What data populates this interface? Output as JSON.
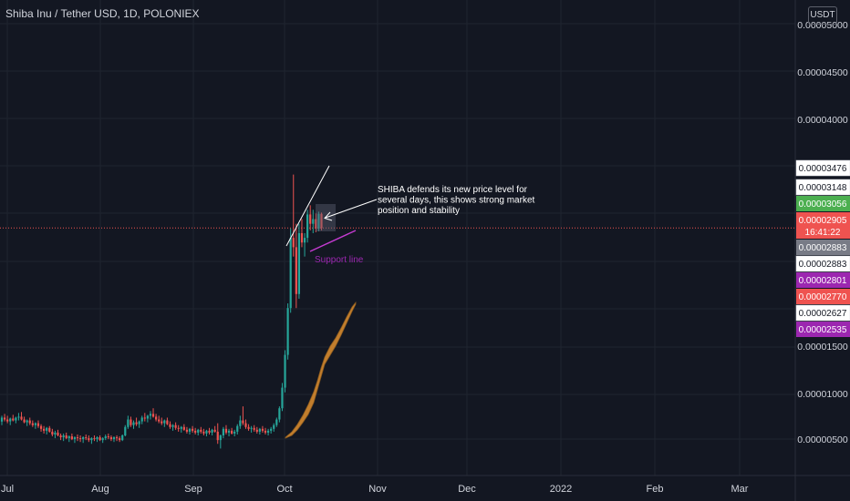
{
  "header": {
    "symbol_title": "Shiba Inu / Tether USD, 1D, POLONIEX",
    "currency_badge": "USDT"
  },
  "colors": {
    "background": "#131722",
    "grid": "#1f2430",
    "up_candle": "#26a69a",
    "down_candle": "#ef5350",
    "axis_text": "#d1d4dc",
    "current_price_line": "#ef5350",
    "fill_band": "#d6892f",
    "support_line": "#c43bd1",
    "support_label": "#9c27b0",
    "trend_line": "#ffffff"
  },
  "chart_data": {
    "type": "candlestick",
    "title": "Shiba Inu / Tether USD, 1D, POLONIEX",
    "y_axis": {
      "position": "right",
      "scale": "linear",
      "range": [
        2.62e-06,
        5.34e-05
      ],
      "tick_labels": [
        "0.00005000",
        "0.00004500",
        "0.00004000",
        "0.00001500",
        "0.00001000",
        "0.00000500"
      ],
      "unit": "USDT"
    },
    "x_axis": {
      "tick_labels": [
        "Jul",
        "Aug",
        "Sep",
        "Oct",
        "Nov",
        "Dec",
        "2022",
        "Feb",
        "Mar"
      ]
    },
    "grid": true,
    "price_tags": [
      {
        "label": "0.00003476",
        "value": 3.476e-05,
        "bg": "#ffffff",
        "fg": "#131722"
      },
      {
        "label": "0.00003148",
        "value": 3.148e-05,
        "bg": "#ffffff",
        "fg": "#131722"
      },
      {
        "label": "0.00003056",
        "value": 3.056e-05,
        "bg": "#4caf50",
        "fg": "#ffffff"
      },
      {
        "label": "0.00002905",
        "sublabel": "16:41:22",
        "value": 2.905e-05,
        "bg": "#ef5350",
        "fg": "#ffffff"
      },
      {
        "label": "0.00002883",
        "value": 2.883e-05,
        "bg": "#787b86",
        "fg": "#ffffff"
      },
      {
        "label": "0.00002883",
        "value": 2.883e-05,
        "bg": "#ffffff",
        "fg": "#131722"
      },
      {
        "label": "0.00002801",
        "value": 2.801e-05,
        "bg": "#9c27b0",
        "fg": "#ffffff"
      },
      {
        "label": "0.00002770",
        "value": 2.77e-05,
        "bg": "#ef5350",
        "fg": "#ffffff"
      },
      {
        "label": "0.00002627",
        "value": 2.627e-05,
        "bg": "#ffffff",
        "fg": "#131722"
      },
      {
        "label": "0.00002535",
        "value": 2.535e-05,
        "bg": "#9c27b0",
        "fg": "#ffffff"
      }
    ],
    "current_price": 2.905e-05,
    "candles": [
      {
        "o": 8.38e-06,
        "h": 9e-06,
        "l": 8e-06,
        "c": 8.8e-06
      },
      {
        "o": 8.8e-06,
        "h": 9.2e-06,
        "l": 8.4e-06,
        "c": 8.6e-06
      },
      {
        "o": 8.6e-06,
        "h": 9e-06,
        "l": 8.2e-06,
        "c": 8.4e-06
      },
      {
        "o": 8.4e-06,
        "h": 8.8e-06,
        "l": 8e-06,
        "c": 8.7e-06
      },
      {
        "o": 8.7e-06,
        "h": 9.1e-06,
        "l": 8.4e-06,
        "c": 8.5e-06
      },
      {
        "o": 8.5e-06,
        "h": 8.9e-06,
        "l": 8.2e-06,
        "c": 8.8e-06
      },
      {
        "o": 8.8e-06,
        "h": 9.3e-06,
        "l": 8.5e-06,
        "c": 8.9e-06
      },
      {
        "o": 8.9e-06,
        "h": 9.4e-06,
        "l": 8.5e-06,
        "c": 8.6e-06
      },
      {
        "o": 8.6e-06,
        "h": 8.9e-06,
        "l": 8.2e-06,
        "c": 8.3e-06
      },
      {
        "o": 8.3e-06,
        "h": 8.6e-06,
        "l": 7.9e-06,
        "c": 8.5e-06
      },
      {
        "o": 8.5e-06,
        "h": 8.8e-06,
        "l": 8e-06,
        "c": 8.2e-06
      },
      {
        "o": 8.2e-06,
        "h": 8.5e-06,
        "l": 7.8e-06,
        "c": 8e-06
      },
      {
        "o": 8e-06,
        "h": 8.3e-06,
        "l": 7.6e-06,
        "c": 8.2e-06
      },
      {
        "o": 8.2e-06,
        "h": 8.5e-06,
        "l": 7.7e-06,
        "c": 7.9e-06
      },
      {
        "o": 7.9e-06,
        "h": 8.1e-06,
        "l": 7.3e-06,
        "c": 7.6e-06
      },
      {
        "o": 7.6e-06,
        "h": 7.9e-06,
        "l": 7.1e-06,
        "c": 7.4e-06
      },
      {
        "o": 7.4e-06,
        "h": 7.8e-06,
        "l": 7e-06,
        "c": 7.7e-06
      },
      {
        "o": 7.7e-06,
        "h": 7.9e-06,
        "l": 7.2e-06,
        "c": 7.3e-06
      },
      {
        "o": 7.3e-06,
        "h": 7.6e-06,
        "l": 6.8e-06,
        "c": 7e-06
      },
      {
        "o": 7e-06,
        "h": 7.4e-06,
        "l": 6.6e-06,
        "c": 7.2e-06
      },
      {
        "o": 7.2e-06,
        "h": 7.5e-06,
        "l": 6.8e-06,
        "c": 6.9e-06
      },
      {
        "o": 6.9e-06,
        "h": 7.1e-06,
        "l": 6.4e-06,
        "c": 6.7e-06
      },
      {
        "o": 6.7e-06,
        "h": 7.1e-06,
        "l": 6.3e-06,
        "c": 6.9e-06
      },
      {
        "o": 6.9e-06,
        "h": 7.2e-06,
        "l": 6.5e-06,
        "c": 6.6e-06
      },
      {
        "o": 6.6e-06,
        "h": 6.9e-06,
        "l": 6.2e-06,
        "c": 6.8e-06
      },
      {
        "o": 6.8e-06,
        "h": 7.1e-06,
        "l": 6.4e-06,
        "c": 6.5e-06
      },
      {
        "o": 6.5e-06,
        "h": 6.8e-06,
        "l": 6.1e-06,
        "c": 6.7e-06
      },
      {
        "o": 6.7e-06,
        "h": 7e-06,
        "l": 6.3e-06,
        "c": 6.6e-06
      },
      {
        "o": 6.6e-06,
        "h": 6.9e-06,
        "l": 6.2e-06,
        "c": 6.5e-06
      },
      {
        "o": 6.5e-06,
        "h": 6.8e-06,
        "l": 6.1e-06,
        "c": 6.7e-06
      },
      {
        "o": 6.7e-06,
        "h": 7e-06,
        "l": 6.4e-06,
        "c": 6.6e-06
      },
      {
        "o": 6.6e-06,
        "h": 6.9e-06,
        "l": 6.2e-06,
        "c": 6.4e-06
      },
      {
        "o": 6.4e-06,
        "h": 6.7e-06,
        "l": 6e-06,
        "c": 6.6e-06
      },
      {
        "o": 6.6e-06,
        "h": 6.9e-06,
        "l": 6.3e-06,
        "c": 6.5e-06
      },
      {
        "o": 6.5e-06,
        "h": 6.8e-06,
        "l": 6.2e-06,
        "c": 6.7e-06
      },
      {
        "o": 6.7e-06,
        "h": 6.9e-06,
        "l": 6.3e-06,
        "c": 6.4e-06
      },
      {
        "o": 6.4e-06,
        "h": 6.7e-06,
        "l": 6.1e-06,
        "c": 6.6e-06
      },
      {
        "o": 6.6e-06,
        "h": 7e-06,
        "l": 6.4e-06,
        "c": 6.8e-06
      },
      {
        "o": 6.8e-06,
        "h": 7.1e-06,
        "l": 6.5e-06,
        "c": 6.7e-06
      },
      {
        "o": 6.7e-06,
        "h": 6.9e-06,
        "l": 6.3e-06,
        "c": 6.5e-06
      },
      {
        "o": 6.5e-06,
        "h": 6.8e-06,
        "l": 6.2e-06,
        "c": 6.7e-06
      },
      {
        "o": 6.7e-06,
        "h": 6.9e-06,
        "l": 6.3e-06,
        "c": 6.6e-06
      },
      {
        "o": 6.6e-06,
        "h": 6.8e-06,
        "l": 6.2e-06,
        "c": 6.4e-06
      },
      {
        "o": 6.4e-06,
        "h": 7e-06,
        "l": 6.3e-06,
        "c": 6.9e-06
      },
      {
        "o": 6.9e-06,
        "h": 8e-06,
        "l": 6.8e-06,
        "c": 7.8e-06
      },
      {
        "o": 7.8e-06,
        "h": 9e-06,
        "l": 7.6e-06,
        "c": 8.6e-06
      },
      {
        "o": 8.6e-06,
        "h": 8.9e-06,
        "l": 7.8e-06,
        "c": 8e-06
      },
      {
        "o": 8e-06,
        "h": 8.5e-06,
        "l": 7.6e-06,
        "c": 8.3e-06
      },
      {
        "o": 8.3e-06,
        "h": 8.8e-06,
        "l": 7.9e-06,
        "c": 8.1e-06
      },
      {
        "o": 8.1e-06,
        "h": 8.5e-06,
        "l": 7.7e-06,
        "c": 8.4e-06
      },
      {
        "o": 8.4e-06,
        "h": 9e-06,
        "l": 8.1e-06,
        "c": 8.8e-06
      },
      {
        "o": 8.8e-06,
        "h": 9.3e-06,
        "l": 8.4e-06,
        "c": 8.7e-06
      },
      {
        "o": 8.7e-06,
        "h": 9.1e-06,
        "l": 8.3e-06,
        "c": 9e-06
      },
      {
        "o": 9e-06,
        "h": 9.5e-06,
        "l": 8.6e-06,
        "c": 9.2e-06
      },
      {
        "o": 9.2e-06,
        "h": 9.8e-06,
        "l": 8.8e-06,
        "c": 8.9e-06
      },
      {
        "o": 8.9e-06,
        "h": 9.2e-06,
        "l": 8.4e-06,
        "c": 8.6e-06
      },
      {
        "o": 8.6e-06,
        "h": 9e-06,
        "l": 8.2e-06,
        "c": 8.4e-06
      },
      {
        "o": 8.4e-06,
        "h": 8.8e-06,
        "l": 8e-06,
        "c": 8.2e-06
      },
      {
        "o": 8.2e-06,
        "h": 8.6e-06,
        "l": 7.8e-06,
        "c": 8.5e-06
      },
      {
        "o": 8.5e-06,
        "h": 8.8e-06,
        "l": 8e-06,
        "c": 8.1e-06
      },
      {
        "o": 8.1e-06,
        "h": 8.4e-06,
        "l": 7.6e-06,
        "c": 7.8e-06
      },
      {
        "o": 7.8e-06,
        "h": 8.1e-06,
        "l": 7.4e-06,
        "c": 8e-06
      },
      {
        "o": 8e-06,
        "h": 8.3e-06,
        "l": 7.5e-06,
        "c": 7.7e-06
      },
      {
        "o": 7.7e-06,
        "h": 8e-06,
        "l": 7.3e-06,
        "c": 7.6e-06
      },
      {
        "o": 7.6e-06,
        "h": 7.9e-06,
        "l": 7.2e-06,
        "c": 7.8e-06
      },
      {
        "o": 7.8e-06,
        "h": 8.1e-06,
        "l": 7.4e-06,
        "c": 7.5e-06
      },
      {
        "o": 7.5e-06,
        "h": 7.8e-06,
        "l": 7.1e-06,
        "c": 7.3e-06
      },
      {
        "o": 7.3e-06,
        "h": 7.7e-06,
        "l": 7e-06,
        "c": 7.6e-06
      },
      {
        "o": 7.6e-06,
        "h": 7.9e-06,
        "l": 7.2e-06,
        "c": 7.4e-06
      },
      {
        "o": 7.4e-06,
        "h": 7.7e-06,
        "l": 7e-06,
        "c": 7.2e-06
      },
      {
        "o": 7.2e-06,
        "h": 7.6e-06,
        "l": 6.9e-06,
        "c": 7.5e-06
      },
      {
        "o": 7.5e-06,
        "h": 7.8e-06,
        "l": 7.1e-06,
        "c": 7.3e-06
      },
      {
        "o": 7.3e-06,
        "h": 7.6e-06,
        "l": 6.9e-06,
        "c": 7.1e-06
      },
      {
        "o": 7.1e-06,
        "h": 7.5e-06,
        "l": 6.8e-06,
        "c": 7.4e-06
      },
      {
        "o": 7.4e-06,
        "h": 7.7e-06,
        "l": 7e-06,
        "c": 7.2e-06
      },
      {
        "o": 7.2e-06,
        "h": 7.6e-06,
        "l": 6.9e-06,
        "c": 7.5e-06
      },
      {
        "o": 7.5e-06,
        "h": 7.9e-06,
        "l": 7.2e-06,
        "c": 7.3e-06
      },
      {
        "o": 7.3e-06,
        "h": 8.2e-06,
        "l": 6e-06,
        "c": 6.4e-06
      },
      {
        "o": 6.4e-06,
        "h": 7e-06,
        "l": 5.5e-06,
        "c": 6.9e-06
      },
      {
        "o": 6.9e-06,
        "h": 7.8e-06,
        "l": 6.6e-06,
        "c": 7.6e-06
      },
      {
        "o": 7.6e-06,
        "h": 8e-06,
        "l": 7e-06,
        "c": 7.2e-06
      },
      {
        "o": 7.2e-06,
        "h": 7.6e-06,
        "l": 6.8e-06,
        "c": 7.4e-06
      },
      {
        "o": 7.4e-06,
        "h": 7.7e-06,
        "l": 7e-06,
        "c": 7.1e-06
      },
      {
        "o": 7.1e-06,
        "h": 7.5e-06,
        "l": 6.8e-06,
        "c": 7.3e-06
      },
      {
        "o": 7.3e-06,
        "h": 8.1e-06,
        "l": 7e-06,
        "c": 7.9e-06
      },
      {
        "o": 7.9e-06,
        "h": 9e-06,
        "l": 7.6e-06,
        "c": 8.5e-06
      },
      {
        "o": 8.5e-06,
        "h": 1e-05,
        "l": 8e-06,
        "c": 8.2e-06
      },
      {
        "o": 8.2e-06,
        "h": 8.6e-06,
        "l": 7.6e-06,
        "c": 7.8e-06
      },
      {
        "o": 7.8e-06,
        "h": 8.1e-06,
        "l": 7.4e-06,
        "c": 7.6e-06
      },
      {
        "o": 7.6e-06,
        "h": 7.9e-06,
        "l": 7.2e-06,
        "c": 7.7e-06
      },
      {
        "o": 7.7e-06,
        "h": 8e-06,
        "l": 7.3e-06,
        "c": 7.5e-06
      },
      {
        "o": 7.5e-06,
        "h": 7.8e-06,
        "l": 7.1e-06,
        "c": 7.3e-06
      },
      {
        "o": 7.3e-06,
        "h": 7.7e-06,
        "l": 7e-06,
        "c": 7.6e-06
      },
      {
        "o": 7.6e-06,
        "h": 7.9e-06,
        "l": 7.2e-06,
        "c": 7.4e-06
      },
      {
        "o": 7.4e-06,
        "h": 7.7e-06,
        "l": 7e-06,
        "c": 7.2e-06
      },
      {
        "o": 7.2e-06,
        "h": 7.6e-06,
        "l": 6.9e-06,
        "c": 7.4e-06
      },
      {
        "o": 7.4e-06,
        "h": 7.8e-06,
        "l": 7.1e-06,
        "c": 7.6e-06
      },
      {
        "o": 7.6e-06,
        "h": 8.2e-06,
        "l": 7.3e-06,
        "c": 8e-06
      },
      {
        "o": 8e-06,
        "h": 8.8e-06,
        "l": 7.8e-06,
        "c": 8.6e-06
      },
      {
        "o": 8.6e-06,
        "h": 1e-05,
        "l": 8.3e-06,
        "c": 9.8e-06
      },
      {
        "o": 9.8e-06,
        "h": 1.25e-05,
        "l": 9.5e-06,
        "c": 1.2e-05
      },
      {
        "o": 1.2e-05,
        "h": 1.6e-05,
        "l": 1.15e-05,
        "c": 1.55e-05
      },
      {
        "o": 1.55e-05,
        "h": 2.1e-05,
        "l": 1.5e-05,
        "c": 2.05e-05
      },
      {
        "o": 2.05e-05,
        "h": 2.9e-05,
        "l": 2e-05,
        "c": 2.8e-05
      },
      {
        "o": 2.8e-05,
        "h": 3.476e-05,
        "l": 2.6e-05,
        "c": 2.7e-05
      },
      {
        "o": 2.7e-05,
        "h": 2.95e-05,
        "l": 2.05e-05,
        "c": 2.2e-05
      },
      {
        "o": 2.2e-05,
        "h": 2.95e-05,
        "l": 2.15e-05,
        "c": 2.85e-05
      },
      {
        "o": 2.85e-05,
        "h": 3e-05,
        "l": 2.7e-05,
        "c": 2.75e-05
      },
      {
        "o": 2.75e-05,
        "h": 2.85e-05,
        "l": 2.6e-05,
        "c": 2.8e-05
      },
      {
        "o": 2.8e-05,
        "h": 3.1e-05,
        "l": 2.75e-05,
        "c": 3.05e-05
      },
      {
        "o": 3.05e-05,
        "h": 3.148e-05,
        "l": 2.88e-05,
        "c": 2.95e-05
      },
      {
        "o": 2.95e-05,
        "h": 3.1e-05,
        "l": 2.85e-05,
        "c": 3e-05
      },
      {
        "o": 3e-05,
        "h": 3.06e-05,
        "l": 2.86e-05,
        "c": 2.9e-05
      },
      {
        "o": 2.9e-05,
        "h": 3.08e-05,
        "l": 2.87e-05,
        "c": 3.056e-05
      },
      {
        "o": 3.056e-05,
        "h": 3.07e-05,
        "l": 2.88e-05,
        "c": 2.905e-05
      }
    ],
    "annotations": {
      "callout_text": "SHIBA defends its new price level for several days, this shows strong market position and stability",
      "support_label": "Support line"
    }
  }
}
